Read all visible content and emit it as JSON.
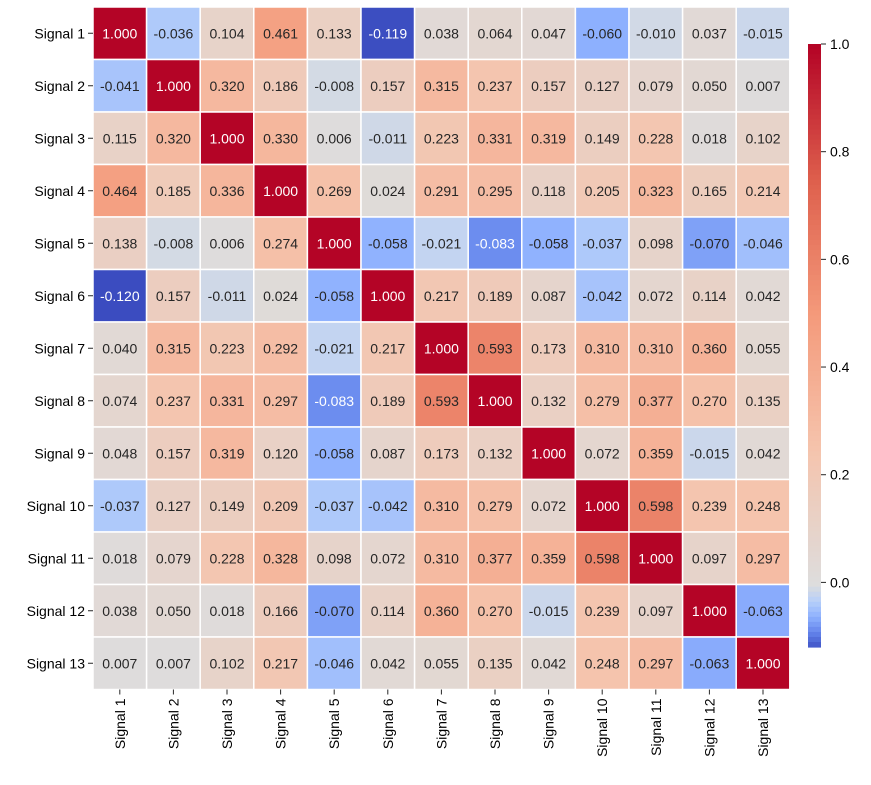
{
  "chart_data": {
    "type": "heatmap",
    "title": "",
    "xlabel": "",
    "ylabel": "",
    "x_labels": [
      "Signal 1",
      "Signal 2",
      "Signal 3",
      "Signal 4",
      "Signal 5",
      "Signal 6",
      "Signal 7",
      "Signal 8",
      "Signal 9",
      "Signal 10",
      "Signal 11",
      "Signal 12",
      "Signal 13"
    ],
    "y_labels": [
      "Signal 1",
      "Signal 2",
      "Signal 3",
      "Signal 4",
      "Signal 5",
      "Signal 6",
      "Signal 7",
      "Signal 8",
      "Signal 9",
      "Signal 10",
      "Signal 11",
      "Signal 12",
      "Signal 13"
    ],
    "values": [
      [
        1.0,
        -0.036,
        0.104,
        0.461,
        0.133,
        -0.119,
        0.038,
        0.064,
        0.047,
        -0.06,
        -0.01,
        0.037,
        -0.015
      ],
      [
        -0.041,
        1.0,
        0.32,
        0.186,
        -0.008,
        0.157,
        0.315,
        0.237,
        0.157,
        0.127,
        0.079,
        0.05,
        0.007
      ],
      [
        0.115,
        0.32,
        1.0,
        0.33,
        0.006,
        -0.011,
        0.223,
        0.331,
        0.319,
        0.149,
        0.228,
        0.018,
        0.102
      ],
      [
        0.464,
        0.185,
        0.336,
        1.0,
        0.269,
        0.024,
        0.291,
        0.295,
        0.118,
        0.205,
        0.323,
        0.165,
        0.214
      ],
      [
        0.138,
        -0.008,
        0.006,
        0.274,
        1.0,
        -0.058,
        -0.021,
        -0.083,
        -0.058,
        -0.037,
        0.098,
        -0.07,
        -0.046
      ],
      [
        -0.12,
        0.157,
        -0.011,
        0.024,
        -0.058,
        1.0,
        0.217,
        0.189,
        0.087,
        -0.042,
        0.072,
        0.114,
        0.042
      ],
      [
        0.04,
        0.315,
        0.223,
        0.292,
        -0.021,
        0.217,
        1.0,
        0.593,
        0.173,
        0.31,
        0.31,
        0.36,
        0.055
      ],
      [
        0.074,
        0.237,
        0.331,
        0.297,
        -0.083,
        0.189,
        0.593,
        1.0,
        0.132,
        0.279,
        0.377,
        0.27,
        0.135
      ],
      [
        0.048,
        0.157,
        0.319,
        0.12,
        -0.058,
        0.087,
        0.173,
        0.132,
        1.0,
        0.072,
        0.359,
        -0.015,
        0.042
      ],
      [
        -0.037,
        0.127,
        0.149,
        0.209,
        -0.037,
        -0.042,
        0.31,
        0.279,
        0.072,
        1.0,
        0.598,
        0.239,
        0.248
      ],
      [
        0.018,
        0.079,
        0.228,
        0.328,
        0.098,
        0.072,
        0.31,
        0.377,
        0.359,
        0.598,
        1.0,
        0.097,
        0.297
      ],
      [
        0.038,
        0.05,
        0.018,
        0.166,
        -0.07,
        0.114,
        0.36,
        0.27,
        -0.015,
        0.239,
        0.097,
        1.0,
        -0.063
      ],
      [
        0.007,
        0.007,
        0.102,
        0.217,
        -0.046,
        0.042,
        0.055,
        0.135,
        0.042,
        0.248,
        0.297,
        -0.063,
        1.0
      ]
    ],
    "value_format": "3 decimals",
    "colormap": "coolwarm",
    "color_center": 0.0,
    "color_range": [
      -0.12,
      1.0
    ],
    "colorbar": {
      "ticks": [
        0.0,
        0.2,
        0.4,
        0.6,
        0.8,
        1.0
      ],
      "tick_labels": [
        "0.0",
        "0.2",
        "0.4",
        "0.6",
        "0.8",
        "1.0"
      ],
      "placement": "right"
    },
    "grid_line_color": "#ffffff"
  }
}
